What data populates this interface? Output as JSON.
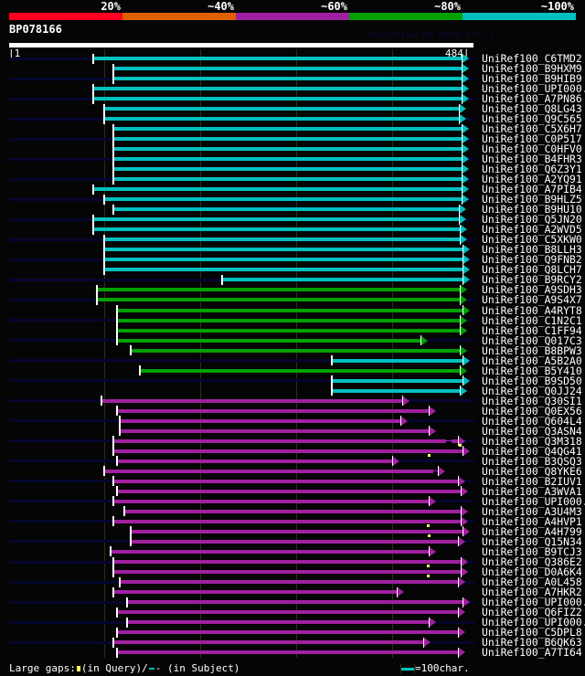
{
  "header": {
    "identity_scale": [
      {
        "label": "20%",
        "color": "#ff0020"
      },
      {
        "label": "~40%",
        "color": "#e06000"
      },
      {
        "label": "~60%",
        "color": "#a020a0"
      },
      {
        "label": "~80%",
        "color": "#00a000"
      },
      {
        "label": "~100%",
        "color": "#00c0c0"
      }
    ],
    "query_name": "BP078166",
    "version_text": "AlignView.pm Beta rel.7",
    "ruler_start": "|1",
    "ruler_end": "484|",
    "query_length": 484
  },
  "colors": {
    "cyan": "#00c0c0",
    "green": "#00a000",
    "magenta": "#a020a0",
    "query_line": "#050530",
    "gap_marker": "#ffff60"
  },
  "hits": [
    {
      "name": "UniRef100_C6TMD2",
      "color": "cyan",
      "start": 89,
      "end": 480
    },
    {
      "name": "UniRef100_B9HXM9",
      "color": "cyan",
      "start": 110,
      "end": 480
    },
    {
      "name": "UniRef100_B9HIB9",
      "color": "cyan",
      "start": 110,
      "end": 480
    },
    {
      "name": "UniRef100_UPI000..",
      "color": "cyan",
      "start": 89,
      "end": 480
    },
    {
      "name": "UniRef100_A7PN86",
      "color": "cyan",
      "start": 89,
      "end": 480
    },
    {
      "name": "UniRef100_Q8LG43",
      "color": "cyan",
      "start": 100,
      "end": 477
    },
    {
      "name": "UniRef100_Q9C565",
      "color": "cyan",
      "start": 100,
      "end": 477
    },
    {
      "name": "UniRef100_C5X6H7",
      "color": "cyan",
      "start": 110,
      "end": 480
    },
    {
      "name": "UniRef100_C0P517",
      "color": "cyan",
      "start": 110,
      "end": 480
    },
    {
      "name": "UniRef100_C0HFV0",
      "color": "cyan",
      "start": 110,
      "end": 480
    },
    {
      "name": "UniRef100_B4FHR3",
      "color": "cyan",
      "start": 110,
      "end": 480
    },
    {
      "name": "UniRef100_Q6Z3Y1",
      "color": "cyan",
      "start": 110,
      "end": 480
    },
    {
      "name": "UniRef100_A2YQ91",
      "color": "cyan",
      "start": 110,
      "end": 480
    },
    {
      "name": "UniRef100_A7PIB4",
      "color": "cyan",
      "start": 89,
      "end": 480
    },
    {
      "name": "UniRef100_B9HLZ5",
      "color": "cyan",
      "start": 100,
      "end": 480
    },
    {
      "name": "UniRef100_B9HU10",
      "color": "cyan",
      "start": 110,
      "end": 477
    },
    {
      "name": "UniRef100_Q5JN20",
      "color": "cyan",
      "start": 89,
      "end": 477
    },
    {
      "name": "UniRef100_A2WVD5",
      "color": "cyan",
      "start": 89,
      "end": 478
    },
    {
      "name": "UniRef100_C5XKW0",
      "color": "cyan",
      "start": 100,
      "end": 478
    },
    {
      "name": "UniRef100_B8LLH3",
      "color": "cyan",
      "start": 100,
      "end": 481
    },
    {
      "name": "UniRef100_Q9FNB2",
      "color": "cyan",
      "start": 100,
      "end": 481
    },
    {
      "name": "UniRef100_Q8LCH7",
      "color": "cyan",
      "start": 100,
      "end": 481
    },
    {
      "name": "UniRef100_B9RCY2",
      "color": "cyan",
      "start": 223,
      "end": 481
    },
    {
      "name": "UniRef100_A9SDH3",
      "color": "green",
      "start": 92,
      "end": 478
    },
    {
      "name": "UniRef100_A9S4X7",
      "color": "green",
      "start": 92,
      "end": 478
    },
    {
      "name": "UniRef100_A4RYT8",
      "color": "green",
      "start": 113,
      "end": 481
    },
    {
      "name": "UniRef100_C1N2C1",
      "color": "green",
      "start": 113,
      "end": 478
    },
    {
      "name": "UniRef100_C1FF94",
      "color": "green",
      "start": 113,
      "end": 478
    },
    {
      "name": "UniRef100_Q017C3",
      "color": "green",
      "start": 113,
      "end": 437
    },
    {
      "name": "UniRef100_B8BPW3",
      "color": "green",
      "start": 128,
      "end": 478
    },
    {
      "name": "UniRef100_A5B2A0",
      "color": "cyan",
      "start": 337,
      "end": 481
    },
    {
      "name": "UniRef100_B5Y410",
      "color": "green",
      "start": 137,
      "end": 478
    },
    {
      "name": "UniRef100_B9SD50",
      "color": "cyan",
      "start": 337,
      "end": 481
    },
    {
      "name": "UniRef100_Q0JJ24",
      "color": "cyan",
      "start": 337,
      "end": 478
    },
    {
      "name": "UniRef100_Q30SI1",
      "color": "magenta",
      "start": 97,
      "end": 418
    },
    {
      "name": "UniRef100_Q0EX56",
      "color": "magenta",
      "start": 113,
      "end": 446
    },
    {
      "name": "UniRef100_Q604L4",
      "color": "magenta",
      "start": 116,
      "end": 416
    },
    {
      "name": "UniRef100_Q3ASN4",
      "color": "magenta",
      "start": 116,
      "end": 446
    },
    {
      "name": "UniRef100_Q3M318",
      "color": "magenta",
      "start": 110,
      "end": 476,
      "subject_gap": [
        456,
        462
      ],
      "query_gap": 471
    },
    {
      "name": "UniRef100_Q4QG41",
      "color": "magenta",
      "start": 110,
      "end": 481,
      "query_gap": 438
    },
    {
      "name": "UniRef100_B3QSQ3",
      "color": "magenta",
      "start": 113,
      "end": 408
    },
    {
      "name": "UniRef100_Q8YKE6",
      "color": "magenta",
      "start": 100,
      "end": 455,
      "subject_gap": [
        443,
        450
      ]
    },
    {
      "name": "UniRef100_B2IUV1",
      "color": "magenta",
      "start": 110,
      "end": 476
    },
    {
      "name": "UniRef100_A3WVA1",
      "color": "magenta",
      "start": 113,
      "end": 479
    },
    {
      "name": "UniRef100_UPI000..",
      "color": "magenta",
      "start": 110,
      "end": 446
    },
    {
      "name": "UniRef100_A3U4M3",
      "color": "magenta",
      "start": 121,
      "end": 479
    },
    {
      "name": "UniRef100_A4HVP1",
      "color": "magenta",
      "start": 110,
      "end": 479,
      "query_gap": 437
    },
    {
      "name": "UniRef100_A4H799",
      "color": "magenta",
      "start": 128,
      "end": 481,
      "query_gap": 438
    },
    {
      "name": "UniRef100_Q15N34",
      "color": "magenta",
      "start": 128,
      "end": 476
    },
    {
      "name": "UniRef100_B9TCJ3",
      "color": "magenta",
      "start": 107,
      "end": 446
    },
    {
      "name": "UniRef100_Q386E2",
      "color": "magenta",
      "start": 110,
      "end": 479,
      "query_gap": 437
    },
    {
      "name": "UniRef100_D0A6K4",
      "color": "magenta",
      "start": 110,
      "end": 479,
      "query_gap": 437
    },
    {
      "name": "UniRef100_A0L458",
      "color": "magenta",
      "start": 116,
      "end": 476
    },
    {
      "name": "UniRef100_A7HKR2",
      "color": "magenta",
      "start": 110,
      "end": 413
    },
    {
      "name": "UniRef100_UPI000..",
      "color": "magenta",
      "start": 124,
      "end": 481
    },
    {
      "name": "UniRef100_Q6FIZ2",
      "color": "magenta",
      "start": 113,
      "end": 476
    },
    {
      "name": "UniRef100_UPI000..",
      "color": "magenta",
      "start": 124,
      "end": 446
    },
    {
      "name": "UniRef100_C5DPL8",
      "color": "magenta",
      "start": 113,
      "end": 476
    },
    {
      "name": "UniRef100_B6QK63",
      "color": "magenta",
      "start": 110,
      "end": 440
    },
    {
      "name": "UniRef100_A7TI64",
      "color": "magenta",
      "start": 113,
      "end": 476
    }
  ],
  "footer": {
    "legend_prefix": "Large gaps:",
    "legend_query": "(in Query)/",
    "legend_subject": "- (in Subject)",
    "scale_label": "=100char."
  }
}
